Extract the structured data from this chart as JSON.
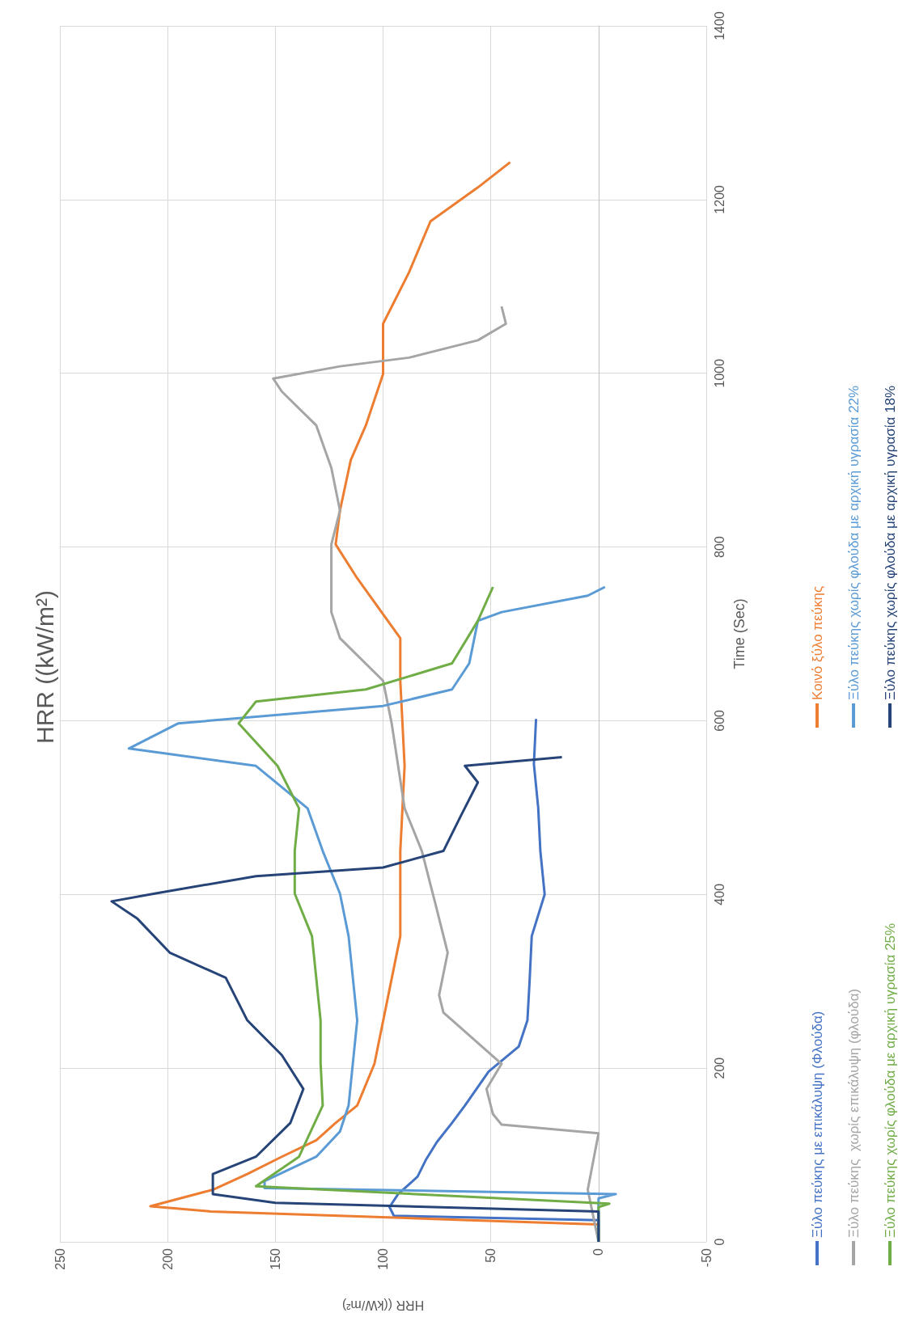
{
  "chart_data": {
    "type": "line",
    "title": "HRR ((kW/m²)",
    "xlabel": "HRR ((kW/m²)",
    "ylabel": "Time (Sec)",
    "xlim": [
      250,
      -50
    ],
    "xticks": [
      250,
      200,
      150,
      100,
      50,
      0,
      -50
    ],
    "ylim": [
      0,
      1400
    ],
    "yticks": [
      0,
      200,
      400,
      600,
      800,
      1000,
      1200,
      1400
    ],
    "grid": true,
    "legend": "right",
    "marker": "none",
    "series": [
      {
        "name": "Ξύλο πεύκης με επικάλυψη (Φλούδα)",
        "color": "#4472c4",
        "values": [
          0,
          25,
          30,
          40,
          55,
          75,
          95,
          115,
          137,
          157,
          196,
          225,
          255,
          300,
          352,
          400,
          450,
          500,
          550,
          602
        ],
        "x": [
          0,
          0,
          95,
          97,
          93,
          84,
          80,
          75,
          68,
          62,
          51,
          37,
          33,
          32,
          31,
          25,
          27,
          28,
          30,
          29
        ]
      },
      {
        "name": "Κοινό ξύλο πεύκης",
        "color": "#ed7d31",
        "values": [
          0,
          20,
          25,
          35,
          41,
          60,
          78,
          98,
          117,
          137,
          157,
          205,
          254,
          352,
          450,
          548,
          646,
          695,
          764,
          803,
          842,
          900,
          940,
          999,
          1057,
          1116,
          1175,
          1214,
          1243
        ],
        "x": [
          0,
          0,
          60,
          180,
          208,
          179,
          163,
          147,
          131,
          122,
          112,
          104,
          100,
          92,
          92,
          90,
          92,
          92,
          112,
          122,
          120,
          115,
          108,
          100,
          100,
          88,
          78,
          56,
          41
        ]
      },
      {
        "name": "Ξύλο πεύκης  χωρίς επικάλυψη (φλούδα)",
        "color": "#a5a5a5",
        "values": [
          0,
          60,
          125,
          135,
          147,
          176,
          205,
          264,
          284,
          333,
          392,
          450,
          499,
          597,
          646,
          695,
          725,
          764,
          803,
          842,
          891,
          940,
          979,
          994,
          1008,
          1018,
          1038,
          1057,
          1077
        ],
        "x": [
          0,
          5,
          0,
          45,
          49,
          52,
          45,
          72,
          74,
          70,
          76,
          82,
          90,
          96,
          100,
          120,
          124,
          124,
          124,
          120,
          124,
          131,
          147,
          151,
          120,
          88,
          56,
          43,
          45
        ]
      },
      {
        "name": "Ξύλο πεύκης χωρίς φλούδα με αρχική υγρασία 22%",
        "color": "#5b9bd5",
        "values": [
          0,
          50,
          55,
          62,
          70,
          98,
          127,
          157,
          255,
          352,
          401,
          450,
          499,
          548,
          568,
          597,
          617,
          636,
          666,
          715,
          725,
          744,
          754
        ],
        "x": [
          0,
          0,
          -8,
          155,
          155,
          131,
          120,
          116,
          112,
          116,
          120,
          128,
          135,
          159,
          218,
          195,
          100,
          68,
          60,
          56,
          45,
          5,
          -3
        ]
      },
      {
        "name": "Ξύλο πεύκης χωρίς φλούδα με αρχική υγρασία 25%",
        "color": "#70ad47",
        "values": [
          0,
          40,
          44,
          64,
          98,
          157,
          206,
          255,
          352,
          401,
          450,
          499,
          548,
          597,
          622,
          636,
          666,
          715,
          754
        ],
        "x": [
          0,
          0,
          -5,
          159,
          139,
          128,
          129,
          129,
          133,
          141,
          141,
          139,
          149,
          167,
          159,
          108,
          68,
          56,
          49
        ]
      },
      {
        "name": "Ξύλο πεύκης χωρίς φλούδα με αρχική υγρασία 18%",
        "color": "#264478",
        "values": [
          0,
          35,
          45,
          55,
          78,
          98,
          137,
          176,
          215,
          255,
          304,
          333,
          372,
          392,
          401,
          421,
          431,
          450,
          490,
          529,
          548,
          558
        ],
        "x": [
          0,
          0,
          150,
          179,
          179,
          159,
          143,
          137,
          147,
          163,
          173,
          199,
          214,
          226,
          206,
          159,
          100,
          72,
          64,
          56,
          62,
          17
        ]
      }
    ]
  }
}
